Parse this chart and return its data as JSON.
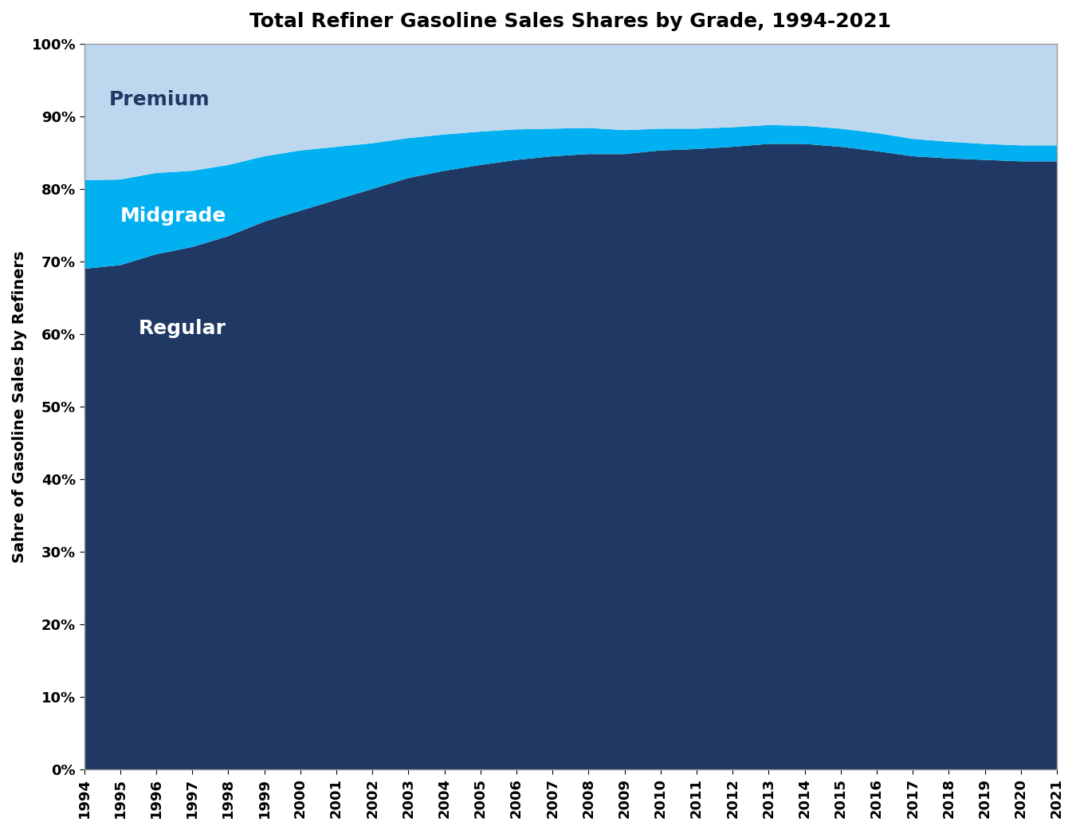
{
  "title": "Total Refiner Gasoline Sales Shares by Grade, 1994-2021",
  "ylabel": "Sahre of Gasoline Sales by Refiners",
  "years": [
    1994,
    1995,
    1996,
    1997,
    1998,
    1999,
    2000,
    2001,
    2002,
    2003,
    2004,
    2005,
    2006,
    2007,
    2008,
    2009,
    2010,
    2011,
    2012,
    2013,
    2014,
    2015,
    2016,
    2017,
    2018,
    2019,
    2020,
    2021
  ],
  "regular": [
    0.69,
    0.695,
    0.71,
    0.72,
    0.735,
    0.755,
    0.77,
    0.785,
    0.8,
    0.815,
    0.825,
    0.833,
    0.84,
    0.845,
    0.848,
    0.848,
    0.853,
    0.855,
    0.858,
    0.862,
    0.862,
    0.858,
    0.852,
    0.845,
    0.842,
    0.84,
    0.838,
    0.838
  ],
  "midgrade": [
    0.122,
    0.118,
    0.112,
    0.105,
    0.098,
    0.09,
    0.083,
    0.073,
    0.063,
    0.055,
    0.05,
    0.046,
    0.042,
    0.038,
    0.036,
    0.033,
    0.03,
    0.028,
    0.027,
    0.026,
    0.025,
    0.025,
    0.025,
    0.024,
    0.023,
    0.022,
    0.022,
    0.022
  ],
  "premium": [
    0.188,
    0.187,
    0.178,
    0.175,
    0.167,
    0.155,
    0.147,
    0.142,
    0.137,
    0.13,
    0.125,
    0.121,
    0.118,
    0.117,
    0.116,
    0.119,
    0.117,
    0.117,
    0.115,
    0.112,
    0.113,
    0.117,
    0.123,
    0.131,
    0.135,
    0.138,
    0.14,
    0.14
  ],
  "color_regular": "#1F3864",
  "color_midgrade": "#00B0F0",
  "color_premium": "#BDD7EE",
  "label_regular": "Regular",
  "label_midgrade": "Midgrade",
  "label_premium": "Premium",
  "label_regular_color": "white",
  "label_midgrade_color": "white",
  "label_premium_color": "#1F3864",
  "title_fontsize": 18,
  "label_fontsize": 14,
  "tick_fontsize": 13,
  "text_label_fontsize": 18
}
